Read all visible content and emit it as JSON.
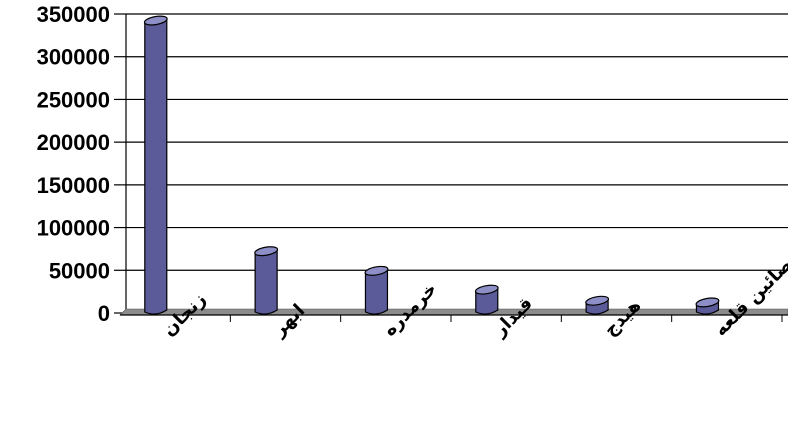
{
  "chart_data": {
    "type": "bar",
    "categories": [
      "زنجان",
      "ابهر",
      "خرمدره",
      "قیدار",
      "هیدج",
      "صائین قلعه"
    ],
    "values": [
      340000,
      70000,
      47000,
      25000,
      12000,
      10000
    ],
    "ylim": [
      0,
      350000
    ],
    "yticks": [
      0,
      50000,
      100000,
      150000,
      200000,
      250000,
      300000,
      350000
    ],
    "ytick_labels": [
      "0",
      "50000",
      "100000",
      "150000",
      "200000",
      "250000",
      "300000",
      "350000"
    ],
    "title": "",
    "xlabel": "",
    "ylabel": "",
    "grid": true,
    "legend": "none",
    "style": "3d-cylinder",
    "colors": {
      "bar_front": "#5b5b9a",
      "bar_top": "#8f8fc8",
      "bar_stroke": "#000000",
      "floor": "#8c8c8c",
      "grid": "#000000"
    }
  }
}
